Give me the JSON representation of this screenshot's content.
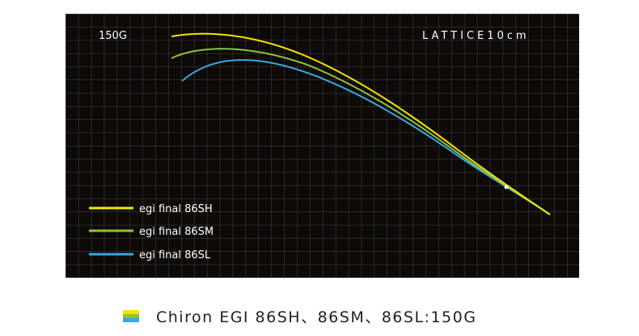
{
  "panel": {
    "load_label": "150G",
    "lattice_label": "LATTICE10cm"
  },
  "legend": [
    {
      "label": "egi final 86SH",
      "color": "#f5e400"
    },
    {
      "label": "egi final 86SM",
      "color": "#8cc43c"
    },
    {
      "label": "egi final 86SL",
      "color": "#3aa7e0"
    }
  ],
  "caption": "Chiron EGI 86SH、86SM、86SL:150G"
}
